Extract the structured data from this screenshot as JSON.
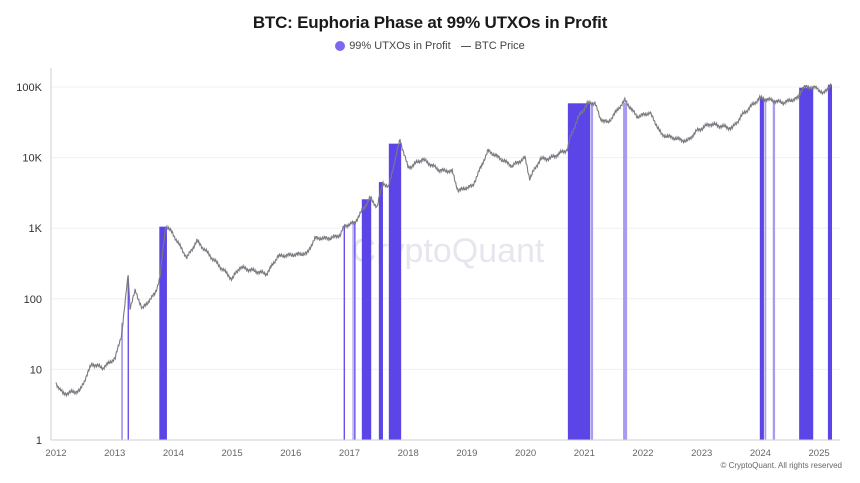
{
  "chart_data": {
    "type": "line",
    "title": "BTC: Euphoria Phase at 99% UTXOs in Profit",
    "legend": [
      {
        "name": "99% UTXOs in Profit",
        "color": "#5b45e6",
        "marker": "dot"
      },
      {
        "name": "BTC Price",
        "color": "#7a7a80",
        "marker": "line"
      }
    ],
    "legend_placement": "top-center",
    "y_scale": "log",
    "ylim": [
      1,
      140000
    ],
    "y_ticks": [
      {
        "value": 1,
        "label": "1"
      },
      {
        "value": 10,
        "label": "10"
      },
      {
        "value": 100,
        "label": "100"
      },
      {
        "value": 1000,
        "label": "1K"
      },
      {
        "value": 10000,
        "label": "10K"
      },
      {
        "value": 100000,
        "label": "100K"
      }
    ],
    "xlim": [
      2011.95,
      2025.35
    ],
    "x_ticks": [
      "2012",
      "2013",
      "2014",
      "2015",
      "2016",
      "2017",
      "2018",
      "2019",
      "2020",
      "2021",
      "2022",
      "2023",
      "2024",
      "2025"
    ],
    "grid": "horizontal",
    "series": [
      {
        "name": "BTC Price",
        "points": [
          [
            2012.0,
            6.4
          ],
          [
            2012.12,
            4.5
          ],
          [
            2012.41,
            5
          ],
          [
            2012.61,
            12
          ],
          [
            2012.8,
            10.5
          ],
          [
            2013.01,
            14.5
          ],
          [
            2013.12,
            32
          ],
          [
            2013.23,
            225
          ],
          [
            2013.26,
            74
          ],
          [
            2013.35,
            130
          ],
          [
            2013.47,
            72
          ],
          [
            2013.69,
            120
          ],
          [
            2013.77,
            200
          ],
          [
            2013.87,
            1100
          ],
          [
            2013.98,
            860
          ],
          [
            2014.23,
            380
          ],
          [
            2014.4,
            660
          ],
          [
            2014.71,
            340
          ],
          [
            2015.0,
            190
          ],
          [
            2015.13,
            280
          ],
          [
            2015.59,
            225
          ],
          [
            2015.78,
            400
          ],
          [
            2016.28,
            440
          ],
          [
            2016.41,
            720
          ],
          [
            2016.67,
            720
          ],
          [
            2016.84,
            800
          ],
          [
            2016.91,
            1070
          ],
          [
            2017.09,
            1200
          ],
          [
            2017.35,
            2700
          ],
          [
            2017.47,
            2000
          ],
          [
            2017.57,
            4500
          ],
          [
            2017.66,
            3700
          ],
          [
            2017.86,
            18000
          ],
          [
            2018.0,
            7100
          ],
          [
            2018.24,
            9500
          ],
          [
            2018.54,
            6600
          ],
          [
            2018.75,
            6400
          ],
          [
            2018.85,
            3400
          ],
          [
            2019.1,
            4000
          ],
          [
            2019.36,
            12500
          ],
          [
            2019.77,
            7600
          ],
          [
            2019.99,
            9900
          ],
          [
            2020.07,
            5100
          ],
          [
            2020.25,
            9500
          ],
          [
            2020.42,
            9800
          ],
          [
            2020.71,
            13000
          ],
          [
            2020.76,
            19000
          ],
          [
            2020.89,
            36000
          ],
          [
            2021.05,
            58000
          ],
          [
            2021.18,
            60000
          ],
          [
            2021.27,
            36000
          ],
          [
            2021.4,
            31000
          ],
          [
            2021.69,
            65000
          ],
          [
            2021.9,
            38000
          ],
          [
            2022.12,
            43000
          ],
          [
            2022.32,
            21000
          ],
          [
            2022.75,
            17000
          ],
          [
            2022.92,
            24000
          ],
          [
            2023.14,
            30000
          ],
          [
            2023.52,
            26000
          ],
          [
            2023.7,
            41000
          ],
          [
            2023.99,
            70000
          ],
          [
            2024.39,
            60000
          ],
          [
            2024.64,
            70000
          ],
          [
            2024.73,
            100000
          ],
          [
            2024.96,
            97000
          ],
          [
            2025.07,
            80000
          ],
          [
            2025.2,
            108000
          ]
        ]
      },
      {
        "name": "99% UTXOs in Profit",
        "periods": [
          {
            "start": 2013.11,
            "end": 2013.14,
            "intensity": "light"
          },
          {
            "start": 2013.22,
            "end": 2013.24,
            "intensity": "strong"
          },
          {
            "start": 2013.76,
            "end": 2013.89,
            "intensity": "strong"
          },
          {
            "start": 2016.9,
            "end": 2016.92,
            "intensity": "strong"
          },
          {
            "start": 2017.05,
            "end": 2017.07,
            "intensity": "light"
          },
          {
            "start": 2017.08,
            "end": 2017.1,
            "intensity": "strong"
          },
          {
            "start": 2017.21,
            "end": 2017.37,
            "intensity": "strong"
          },
          {
            "start": 2017.5,
            "end": 2017.57,
            "intensity": "strong"
          },
          {
            "start": 2017.67,
            "end": 2017.88,
            "intensity": "strong"
          },
          {
            "start": 2020.72,
            "end": 2021.1,
            "intensity": "strong"
          },
          {
            "start": 2021.11,
            "end": 2021.15,
            "intensity": "light"
          },
          {
            "start": 2021.66,
            "end": 2021.73,
            "intensity": "light"
          },
          {
            "start": 2023.99,
            "end": 2024.06,
            "intensity": "strong"
          },
          {
            "start": 2024.07,
            "end": 2024.1,
            "intensity": "light"
          },
          {
            "start": 2024.21,
            "end": 2024.25,
            "intensity": "light"
          },
          {
            "start": 2024.66,
            "end": 2024.9,
            "intensity": "strong"
          },
          {
            "start": 2025.15,
            "end": 2025.22,
            "intensity": "strong"
          }
        ]
      }
    ],
    "colors": {
      "strong": "#5b45e6",
      "light": "#a99cf0",
      "price": "#7a7a80",
      "grid": "#f0f0f3",
      "axis": "#cfcfd6"
    },
    "watermark": "CryptoQuant"
  },
  "footer": {
    "copyright": "© CryptoQuant. All rights reserved"
  }
}
